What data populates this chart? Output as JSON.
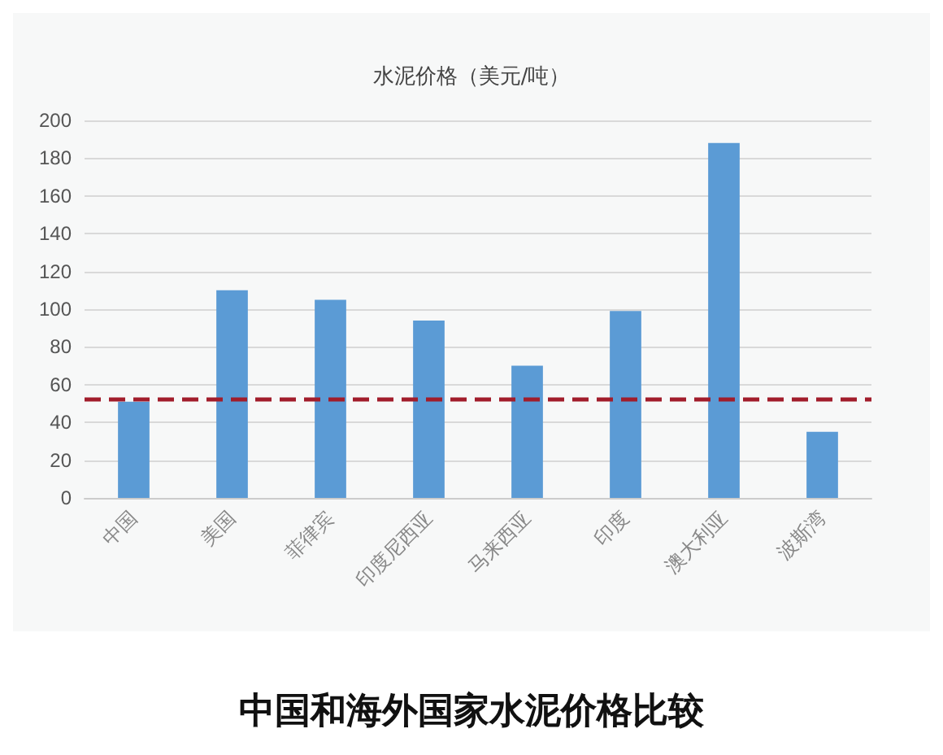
{
  "chart_data": {
    "type": "bar",
    "title": "水泥价格（美元/吨）",
    "categories": [
      "中国",
      "美国",
      "菲律宾",
      "印度尼西亚",
      "马来西亚",
      "印度",
      "澳大利亚",
      "波斯湾"
    ],
    "values": [
      51,
      110,
      105,
      94,
      70,
      99,
      188,
      35
    ],
    "color": "#5b9bd5",
    "ylim": [
      0,
      200
    ],
    "yticks": [
      0,
      20,
      40,
      60,
      80,
      100,
      120,
      140,
      160,
      180,
      200
    ],
    "grid": "y",
    "ref_lines": [
      {
        "axis": "y",
        "value": 52,
        "color": "#a11d2b",
        "line_style": "dashed"
      }
    ],
    "annotations": [
      "中国和海外国家水泥价格比较"
    ]
  }
}
